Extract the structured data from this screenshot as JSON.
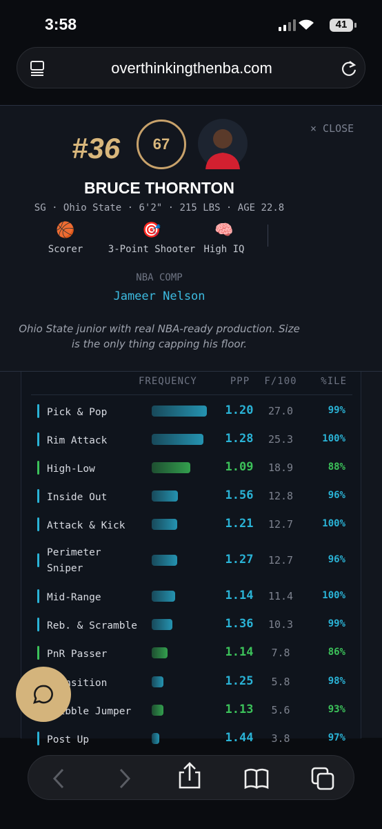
{
  "status_bar": {
    "time": "3:58",
    "battery": "41"
  },
  "browser": {
    "url": "overthinkingthenba.com"
  },
  "card": {
    "close": "× CLOSE",
    "rank": "#36",
    "grade": "67",
    "name": "BRUCE THORNTON",
    "bio": "SG · Ohio State · 6'2\" · 215 LBS · AGE 22.8",
    "tags": [
      {
        "icon": "🏀",
        "label": "Scorer"
      },
      {
        "icon": "🎯",
        "label": "3-Point Shooter"
      },
      {
        "icon": "🧠",
        "label": "High IQ"
      }
    ],
    "comp_label": "NBA COMP",
    "comp": "Jameer Nelson",
    "summary": "Ohio State junior with real NBA-ready production. Size is the only thing capping his floor."
  },
  "table": {
    "headers": [
      "FREQUENCY",
      "PPP",
      "F/100",
      "%ILE"
    ],
    "rows": [
      {
        "name": "Pick & Pop",
        "ppp": "1.20",
        "f100": "27.0",
        "pct": "99%",
        "color": "#2ab3d6"
      },
      {
        "name": "Rim Attack",
        "ppp": "1.28",
        "f100": "25.3",
        "pct": "100%",
        "color": "#2ab3d6"
      },
      {
        "name": "High-Low",
        "ppp": "1.09",
        "f100": "18.9",
        "pct": "88%",
        "color": "#3cc25a"
      },
      {
        "name": "Inside Out",
        "ppp": "1.56",
        "f100": "12.8",
        "pct": "96%",
        "color": "#2ab3d6"
      },
      {
        "name": "Attack & Kick",
        "ppp": "1.21",
        "f100": "12.7",
        "pct": "100%",
        "color": "#2ab3d6"
      },
      {
        "name": "Perimeter Sniper",
        "ppp": "1.27",
        "f100": "12.7",
        "pct": "96%",
        "color": "#2ab3d6"
      },
      {
        "name": "Mid-Range",
        "ppp": "1.14",
        "f100": "11.4",
        "pct": "100%",
        "color": "#2ab3d6"
      },
      {
        "name": "Reb. & Scramble",
        "ppp": "1.36",
        "f100": "10.3",
        "pct": "99%",
        "color": "#2ab3d6"
      },
      {
        "name": "PnR Passer",
        "ppp": "1.14",
        "f100": "7.8",
        "pct": "86%",
        "color": "#3cc25a"
      },
      {
        "name": "Transition",
        "ppp": "1.25",
        "f100": "5.8",
        "pct": "98%",
        "color": "#2ab3d6"
      },
      {
        "name": "Dribble Jumper",
        "ppp": "1.13",
        "f100": "5.6",
        "pct": "93%",
        "color": "#3cc25a"
      },
      {
        "name": "Post Up",
        "ppp": "1.44",
        "f100": "3.8",
        "pct": "97%",
        "color": "#2ab3d6"
      }
    ]
  }
}
